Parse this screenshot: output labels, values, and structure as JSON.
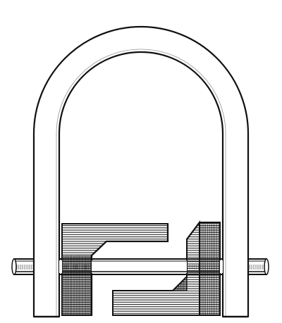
{
  "figure": {
    "colors": {
      "ink": "#111111",
      "paper": "#ffffff"
    }
  }
}
